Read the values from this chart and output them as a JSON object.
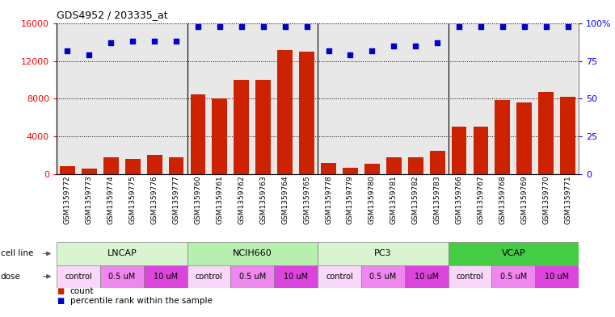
{
  "title": "GDS4952 / 203335_at",
  "samples": [
    "GSM1359772",
    "GSM1359773",
    "GSM1359774",
    "GSM1359775",
    "GSM1359776",
    "GSM1359777",
    "GSM1359760",
    "GSM1359761",
    "GSM1359762",
    "GSM1359763",
    "GSM1359764",
    "GSM1359765",
    "GSM1359778",
    "GSM1359779",
    "GSM1359780",
    "GSM1359781",
    "GSM1359782",
    "GSM1359783",
    "GSM1359766",
    "GSM1359767",
    "GSM1359768",
    "GSM1359769",
    "GSM1359770",
    "GSM1359771"
  ],
  "counts": [
    800,
    600,
    1800,
    1600,
    2000,
    1800,
    8500,
    8000,
    10000,
    10000,
    13200,
    13000,
    1200,
    700,
    1100,
    1800,
    1800,
    2500,
    5000,
    5000,
    7900,
    7600,
    8700,
    8200
  ],
  "percentile_ranks": [
    82,
    79,
    87,
    88,
    88,
    88,
    98,
    98,
    98,
    98,
    98,
    98,
    82,
    79,
    82,
    85,
    85,
    87,
    98,
    98,
    98,
    98,
    98,
    98
  ],
  "cell_lines": [
    {
      "name": "LNCAP",
      "start": 0,
      "end": 6,
      "color": "#d8f5d0"
    },
    {
      "name": "NCIH660",
      "start": 6,
      "end": 12,
      "color": "#b8efb0"
    },
    {
      "name": "PC3",
      "start": 12,
      "end": 18,
      "color": "#d8f5d0"
    },
    {
      "name": "VCAP",
      "start": 18,
      "end": 24,
      "color": "#44cc44"
    }
  ],
  "doses": [
    {
      "label": "control",
      "start": 0,
      "end": 2,
      "color": "#f8d8f8"
    },
    {
      "label": "0.5 uM",
      "start": 2,
      "end": 4,
      "color": "#ee88ee"
    },
    {
      "label": "10 uM",
      "start": 4,
      "end": 6,
      "color": "#dd44dd"
    },
    {
      "label": "control",
      "start": 6,
      "end": 8,
      "color": "#f8d8f8"
    },
    {
      "label": "0.5 uM",
      "start": 8,
      "end": 10,
      "color": "#ee88ee"
    },
    {
      "label": "10 uM",
      "start": 10,
      "end": 12,
      "color": "#dd44dd"
    },
    {
      "label": "control",
      "start": 12,
      "end": 14,
      "color": "#f8d8f8"
    },
    {
      "label": "0.5 uM",
      "start": 14,
      "end": 16,
      "color": "#ee88ee"
    },
    {
      "label": "10 uM",
      "start": 16,
      "end": 18,
      "color": "#dd44dd"
    },
    {
      "label": "control",
      "start": 18,
      "end": 20,
      "color": "#f8d8f8"
    },
    {
      "label": "0.5 uM",
      "start": 20,
      "end": 22,
      "color": "#ee88ee"
    },
    {
      "label": "10 uM",
      "start": 22,
      "end": 24,
      "color": "#dd44dd"
    }
  ],
  "bar_color": "#cc2200",
  "dot_color": "#0000cc",
  "ylim_left": [
    0,
    16000
  ],
  "ylim_right": [
    0,
    100
  ],
  "yticks_left": [
    0,
    4000,
    8000,
    12000,
    16000
  ],
  "yticks_right": [
    0,
    25,
    50,
    75,
    100
  ],
  "bg_color": "#ffffff",
  "plot_bg": "#e8e8e8",
  "cell_line_label": "cell line",
  "dose_label": "dose",
  "legend_count": "count",
  "legend_pct": "percentile rank within the sample"
}
